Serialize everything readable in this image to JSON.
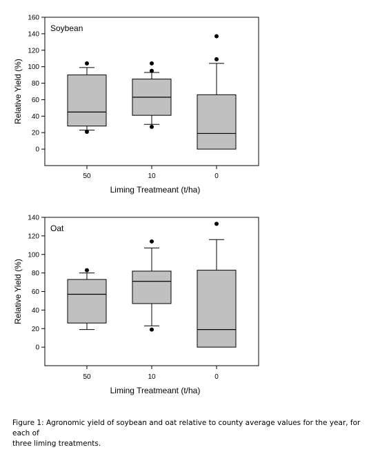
{
  "chart_data": [
    {
      "type": "box",
      "title": "Soybean",
      "xlabel": "Liming Treatmeant (t/ha)",
      "ylabel": "Relative Yield (%)",
      "ylim": [
        -20,
        160
      ],
      "yticks": [
        0,
        20,
        40,
        60,
        80,
        100,
        120,
        140,
        160
      ],
      "categories": [
        "50",
        "10",
        "0"
      ],
      "grid": false,
      "boxes": [
        {
          "category": "50",
          "whisker_low": 23,
          "q1": 28,
          "median": 45,
          "q3": 90,
          "whisker_high": 99,
          "outliers": [
            21,
            104
          ]
        },
        {
          "category": "10",
          "whisker_low": 30,
          "q1": 41,
          "median": 63,
          "q3": 85,
          "whisker_high": 93,
          "outliers": [
            27,
            95,
            104
          ]
        },
        {
          "category": "0",
          "whisker_low": 0,
          "q1": 0,
          "median": 19,
          "q3": 66,
          "whisker_high": 104,
          "outliers": [
            109,
            137
          ]
        }
      ]
    },
    {
      "type": "box",
      "title": "Oat",
      "xlabel": "Liming Treatmeant (t/ha)",
      "ylabel": "Relative Yield (%)",
      "ylim": [
        -20,
        140
      ],
      "yticks": [
        0,
        20,
        40,
        60,
        80,
        100,
        120,
        140
      ],
      "categories": [
        "50",
        "10",
        "0"
      ],
      "grid": false,
      "boxes": [
        {
          "category": "50",
          "whisker_low": 19,
          "q1": 26,
          "median": 57,
          "q3": 73,
          "whisker_high": 80,
          "outliers": [
            83
          ]
        },
        {
          "category": "10",
          "whisker_low": 23,
          "q1": 47,
          "median": 71,
          "q3": 82,
          "whisker_high": 107,
          "outliers": [
            19,
            114
          ]
        },
        {
          "category": "0",
          "whisker_low": 0,
          "q1": 0,
          "median": 19,
          "q3": 83,
          "whisker_high": 116,
          "outliers": [
            133
          ]
        }
      ]
    }
  ],
  "style": {
    "box_fill": "#c0c0c0",
    "stroke": "#000000",
    "outlier": "#000000"
  },
  "caption": {
    "line1": "Figure 1:  Agronomic yield of soybean and oat relative to county average values for the year, for each of",
    "line2": "three liming treatments."
  }
}
